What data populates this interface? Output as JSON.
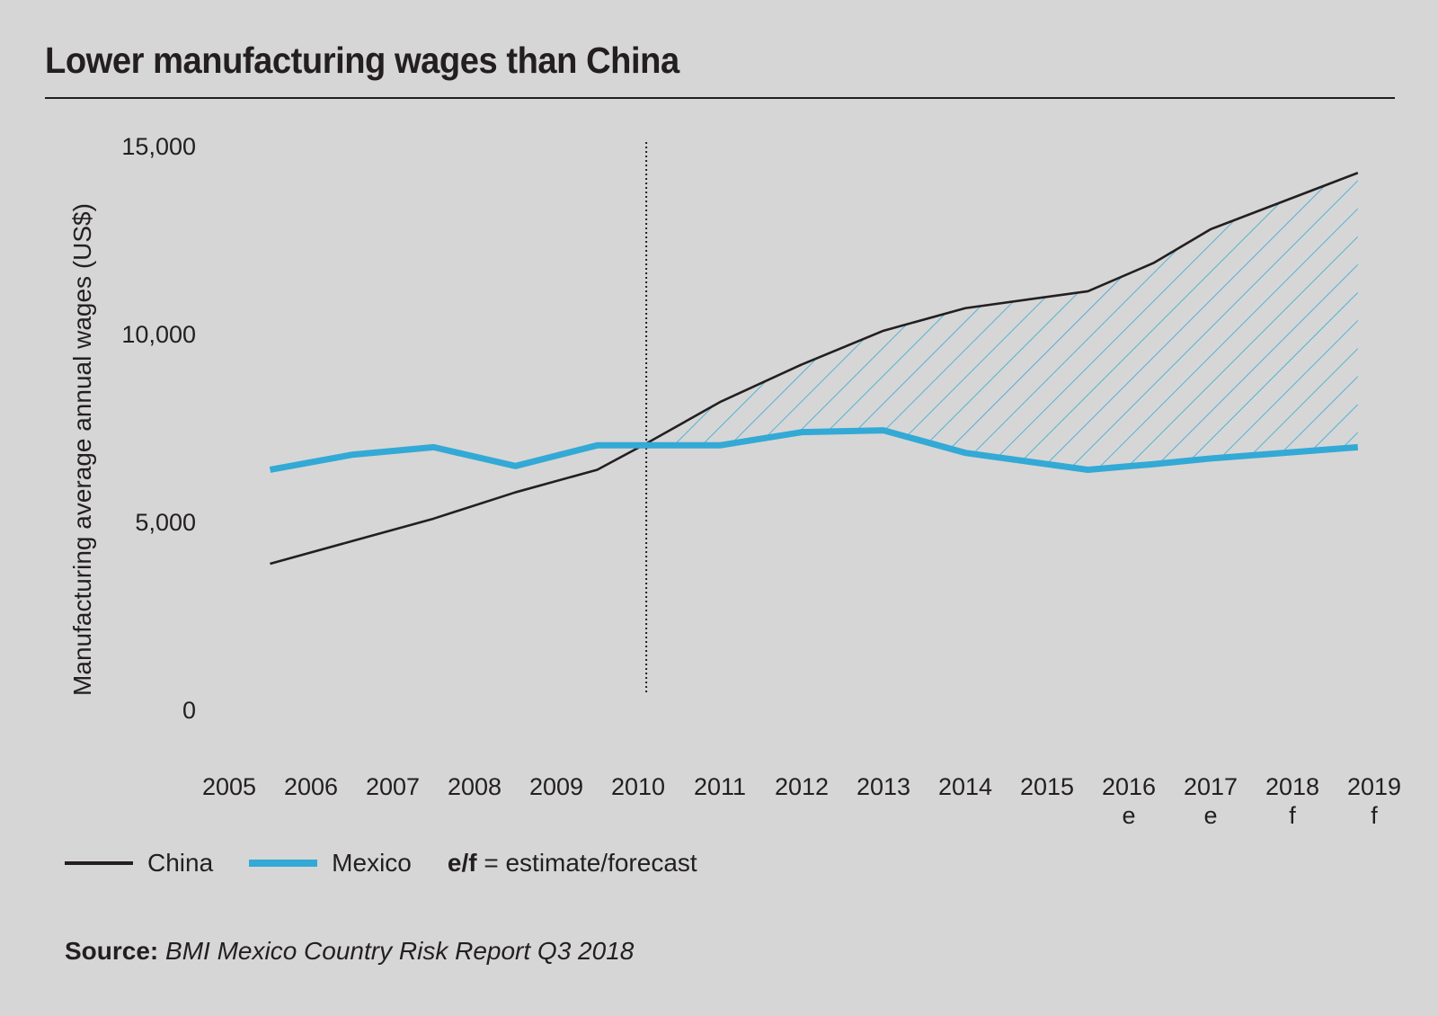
{
  "title": "Lower manufacturing wages than China",
  "legend": {
    "china": "China",
    "mexico": "Mexico",
    "note_bold": "e/f",
    "note_text": " = estimate/forecast"
  },
  "source": {
    "label": "Source:",
    "text": "BMI Mexico Country Risk Report Q3 2018"
  },
  "colors": {
    "china": "#231f20",
    "mexico": "#33a9d6",
    "background": "#d6d6d6"
  },
  "chart_data": {
    "type": "line",
    "title": "Lower manufacturing wages than China",
    "xlabel": "",
    "ylabel": "Manufacturing average annual wages (US$)",
    "ylim": [
      0,
      15000
    ],
    "yticks": [
      0,
      5000,
      10000,
      15000
    ],
    "ytick_labels": [
      "0",
      "5,000",
      "10,000",
      "15,000"
    ],
    "categories": [
      "2005",
      "2006",
      "2007",
      "2008",
      "2009",
      "2010",
      "2011",
      "2012",
      "2013",
      "2014",
      "2015",
      "2016",
      "2017",
      "2018",
      "2019"
    ],
    "category_sublabels": [
      "",
      "",
      "",
      "",
      "",
      "",
      "",
      "",
      "",
      "",
      "",
      "e",
      "e",
      "f",
      "f"
    ],
    "x": [
      2005.5,
      2006.5,
      2007.5,
      2008.5,
      2009.5,
      2010.1,
      2011.0,
      2012.0,
      2013.0,
      2014.0,
      2015.5,
      2016.3,
      2017.0,
      2018.8
    ],
    "series": [
      {
        "name": "China",
        "values": [
          3900,
          4500,
          5100,
          5800,
          6400,
          7100,
          8200,
          9200,
          10100,
          10700,
          11150,
          11900,
          12800,
          14300
        ]
      },
      {
        "name": "Mexico",
        "values": [
          6400,
          6800,
          7000,
          6500,
          7050,
          7050,
          7050,
          7400,
          7450,
          6850,
          6400,
          6550,
          6700,
          7000
        ]
      }
    ],
    "annotations": [
      {
        "type": "vertical-dotted-line",
        "x": 2010.1
      },
      {
        "type": "hatched-area",
        "between": [
          "China",
          "Mexico"
        ],
        "from_x": 2010.1,
        "to_x": 2018.8
      }
    ],
    "grid": false,
    "legend_position": "bottom-left"
  }
}
